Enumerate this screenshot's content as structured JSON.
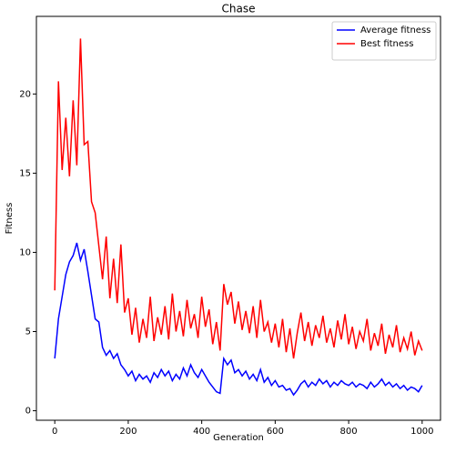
{
  "chart_data": {
    "type": "line",
    "title": "Chase",
    "x_label": "Generation",
    "y_label": "Fitness",
    "x": [
      0,
      10,
      20,
      30,
      40,
      50,
      60,
      70,
      80,
      90,
      100,
      110,
      120,
      130,
      140,
      150,
      160,
      170,
      180,
      190,
      200,
      210,
      220,
      230,
      240,
      250,
      260,
      270,
      280,
      290,
      300,
      310,
      320,
      330,
      340,
      350,
      360,
      370,
      380,
      390,
      400,
      410,
      420,
      430,
      440,
      450,
      460,
      470,
      480,
      490,
      500,
      510,
      520,
      530,
      540,
      550,
      560,
      570,
      580,
      590,
      600,
      610,
      620,
      630,
      640,
      650,
      660,
      670,
      680,
      690,
      700,
      710,
      720,
      730,
      740,
      750,
      760,
      770,
      780,
      790,
      800,
      810,
      820,
      830,
      840,
      850,
      860,
      870,
      880,
      890,
      900,
      910,
      920,
      930,
      940,
      950,
      960,
      970,
      980,
      990,
      1000
    ],
    "series": [
      {
        "name": "Average fitness",
        "color": "#0000ff",
        "values": [
          3.3,
          5.8,
          7.2,
          8.6,
          9.4,
          9.8,
          10.6,
          9.5,
          10.2,
          8.8,
          7.3,
          5.8,
          5.6,
          4.0,
          3.5,
          3.8,
          3.3,
          3.6,
          2.9,
          2.6,
          2.2,
          2.5,
          1.9,
          2.3,
          2.0,
          2.2,
          1.8,
          2.4,
          2.1,
          2.6,
          2.2,
          2.5,
          1.9,
          2.3,
          2.0,
          2.7,
          2.2,
          2.9,
          2.4,
          2.1,
          2.6,
          2.2,
          1.8,
          1.5,
          1.2,
          1.1,
          3.3,
          2.9,
          3.2,
          2.4,
          2.6,
          2.2,
          2.5,
          2.0,
          2.3,
          1.9,
          2.6,
          1.8,
          2.1,
          1.6,
          1.9,
          1.5,
          1.6,
          1.3,
          1.4,
          1.0,
          1.3,
          1.7,
          1.9,
          1.5,
          1.8,
          1.6,
          2.0,
          1.7,
          1.9,
          1.5,
          1.8,
          1.6,
          1.9,
          1.7,
          1.6,
          1.8,
          1.5,
          1.7,
          1.6,
          1.4,
          1.8,
          1.5,
          1.7,
          2.0,
          1.6,
          1.8,
          1.5,
          1.7,
          1.4,
          1.6,
          1.3,
          1.5,
          1.4,
          1.2,
          1.6
        ]
      },
      {
        "name": "Best fitness",
        "color": "#ff0000",
        "values": [
          7.6,
          20.8,
          15.2,
          18.5,
          14.8,
          19.6,
          15.5,
          23.5,
          16.8,
          17.0,
          13.2,
          12.5,
          10.4,
          8.3,
          11.0,
          7.1,
          9.6,
          6.8,
          10.5,
          6.2,
          7.1,
          4.8,
          6.5,
          4.3,
          5.8,
          4.6,
          7.2,
          4.4,
          5.9,
          4.8,
          6.6,
          4.5,
          7.4,
          5.0,
          6.3,
          4.7,
          7.0,
          5.2,
          6.1,
          4.6,
          7.2,
          5.3,
          6.4,
          4.2,
          5.6,
          3.8,
          8.0,
          6.7,
          7.5,
          5.5,
          6.9,
          5.1,
          6.3,
          4.9,
          6.6,
          4.6,
          7.0,
          5.0,
          5.6,
          4.3,
          5.5,
          4.0,
          5.8,
          3.7,
          5.2,
          3.3,
          4.9,
          6.2,
          4.4,
          5.6,
          4.1,
          5.4,
          4.6,
          6.0,
          4.3,
          5.2,
          4.0,
          5.7,
          4.5,
          6.1,
          4.2,
          5.3,
          3.9,
          5.0,
          4.4,
          5.8,
          3.8,
          4.9,
          4.1,
          5.5,
          3.6,
          4.8,
          4.0,
          5.4,
          3.7,
          4.6,
          3.9,
          5.0,
          3.5,
          4.4,
          3.8
        ]
      }
    ],
    "xlim": [
      -50,
      1050
    ],
    "ylim": [
      -0.6,
      24.9
    ],
    "xticks": [
      0,
      200,
      400,
      600,
      800,
      1000
    ],
    "yticks": [
      0,
      5,
      10,
      15,
      20
    ],
    "legend": "upper right"
  }
}
